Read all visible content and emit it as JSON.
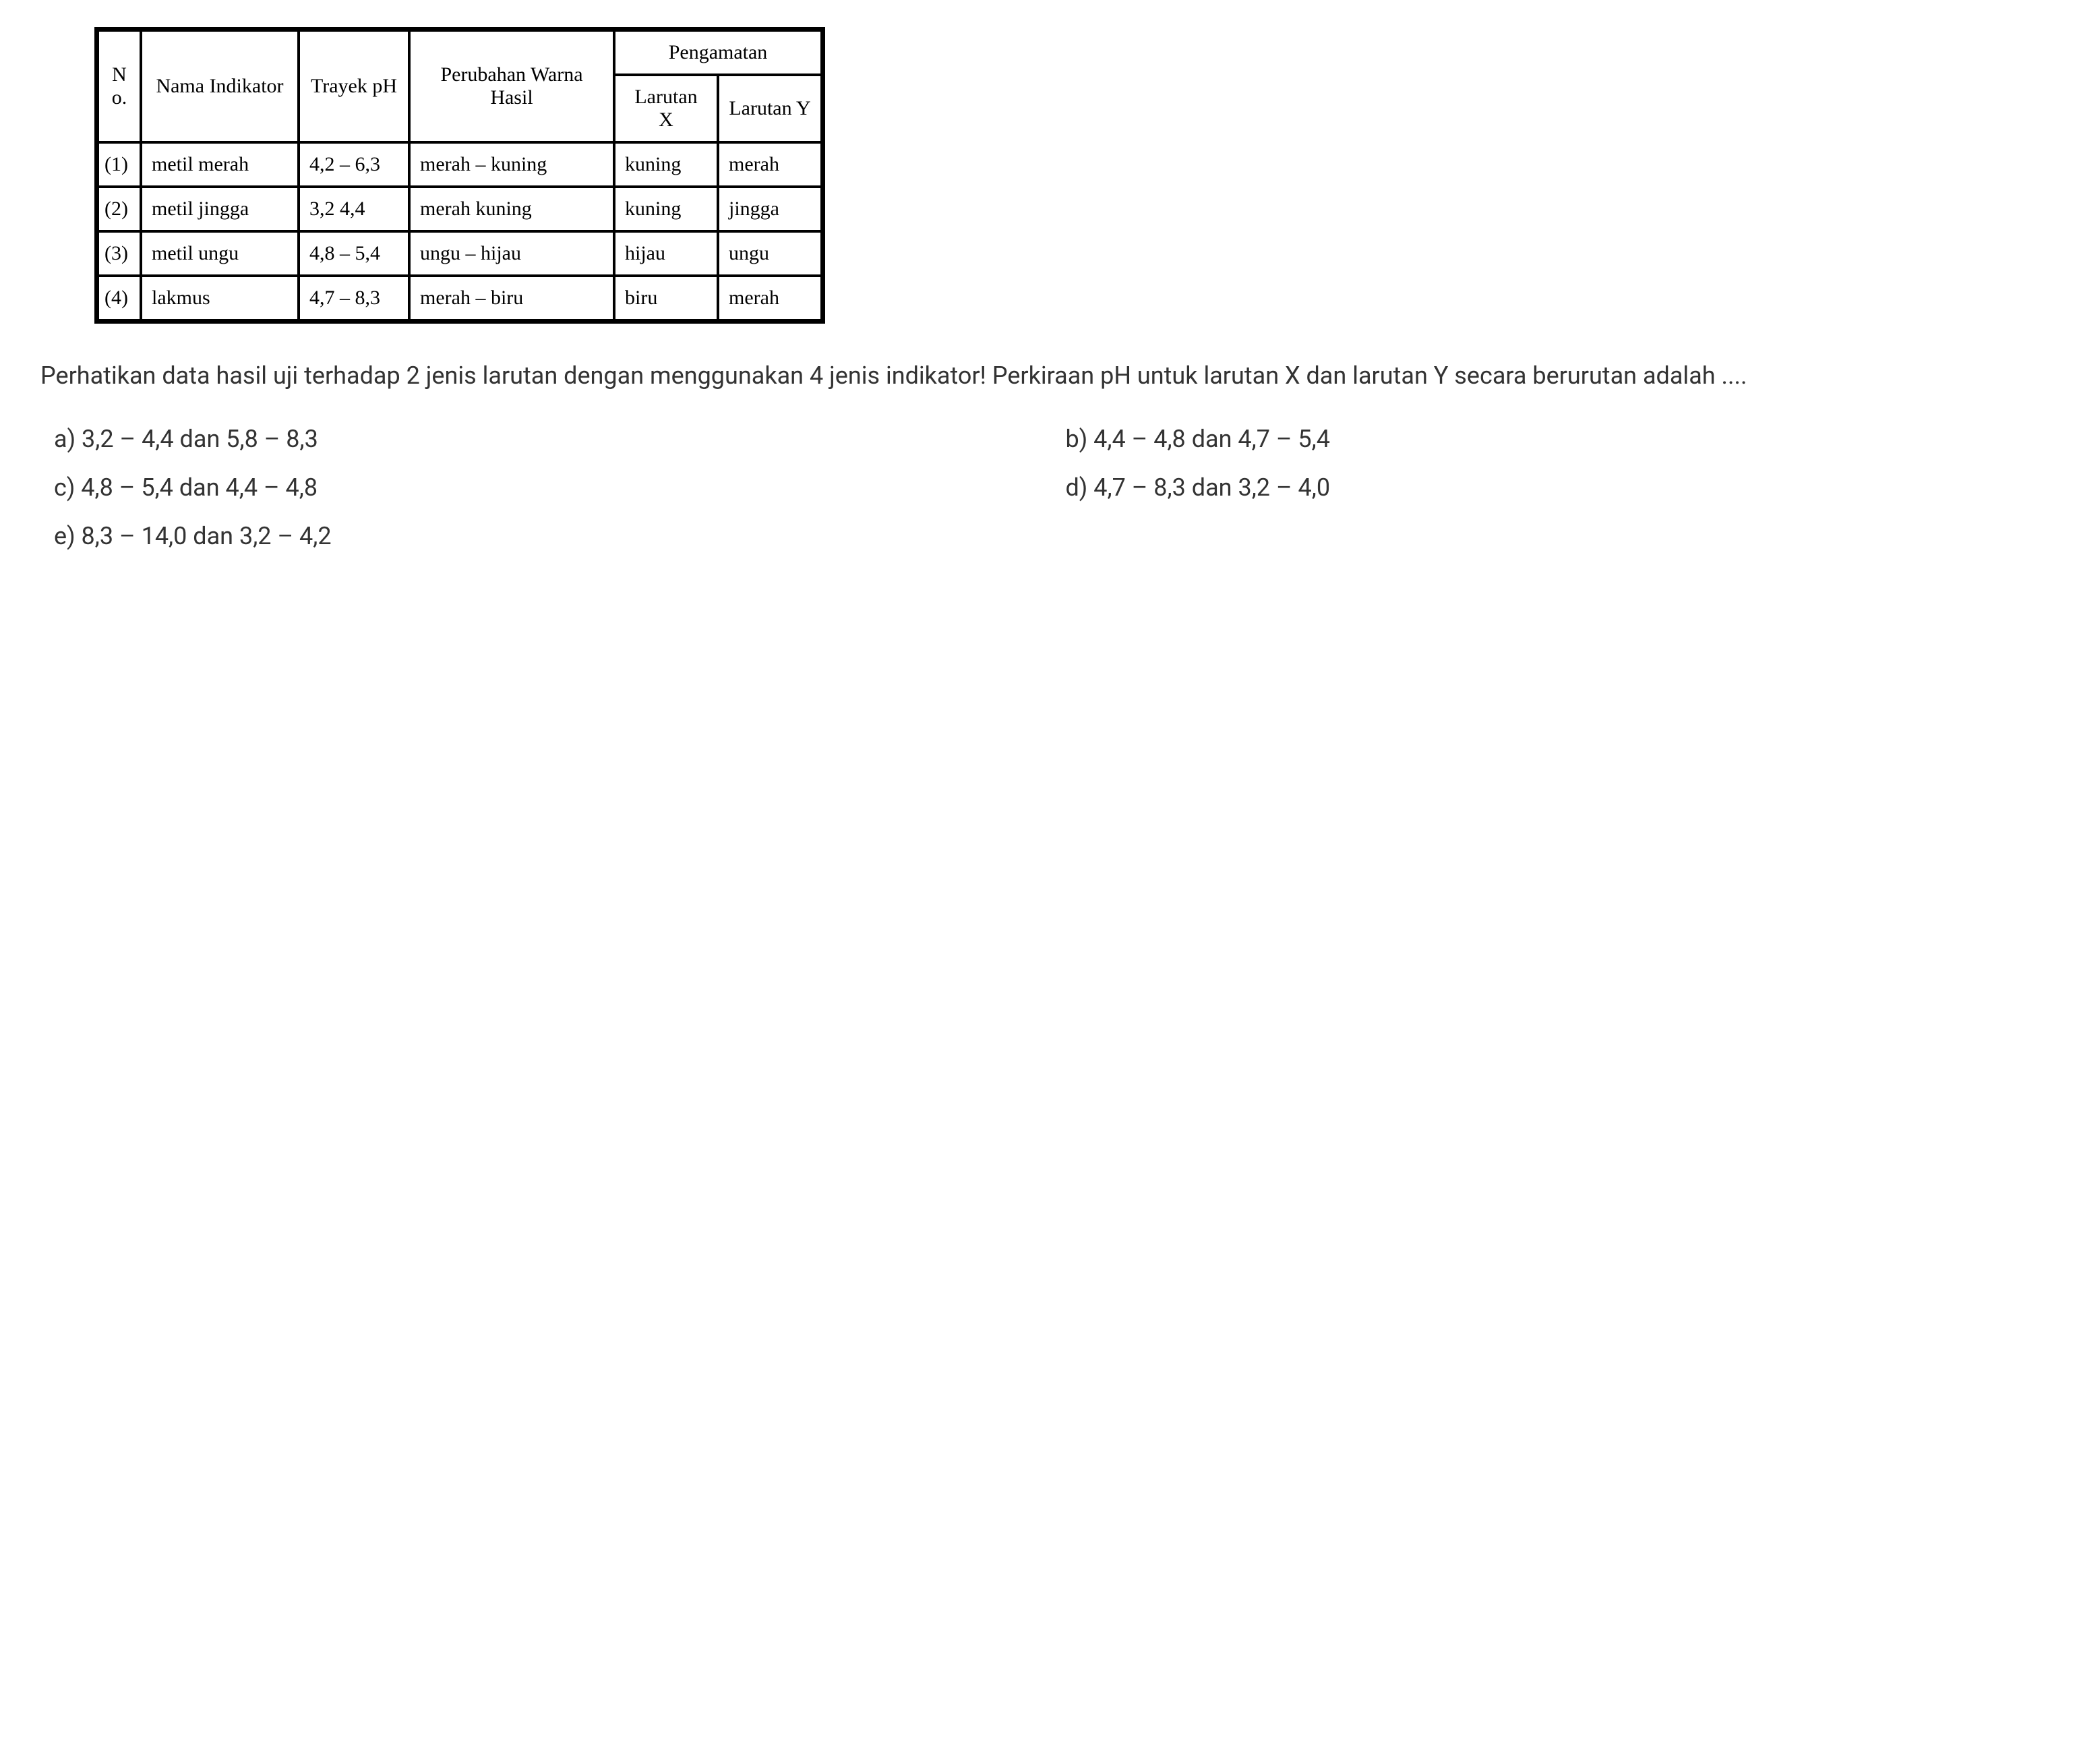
{
  "table": {
    "headers": {
      "no": "N o.",
      "nama": "Nama Indikator",
      "trayek": "Trayek pH",
      "perubahan": "Perubahan Warna Hasil",
      "pengamatan": "Pengamatan",
      "larutanX": "Larutan X",
      "larutanY": "Larutan Y"
    },
    "rows": [
      {
        "no": "(1)",
        "nama": "metil merah",
        "trayek": "4,2 – 6,3",
        "perubahan": "merah – kuning",
        "x": "kuning",
        "y": "merah"
      },
      {
        "no": "(2)",
        "nama": "metil jingga",
        "trayek": "3,2   4,4",
        "perubahan": "merah   kuning",
        "x": "kuning",
        "y": "jingga"
      },
      {
        "no": "(3)",
        "nama": "metil ungu",
        "trayek": "4,8 – 5,4",
        "perubahan": "ungu – hijau",
        "x": "hijau",
        "y": "ungu"
      },
      {
        "no": "(4)",
        "nama": "lakmus",
        "trayek": "4,7 – 8,3",
        "perubahan": "merah – biru",
        "x": "biru",
        "y": "merah"
      }
    ],
    "border_color": "#000000",
    "background_color": "#ffffff",
    "header_fontsize": 30,
    "cell_fontsize": 30
  },
  "question": {
    "text": "Perhatikan data hasil uji terhadap 2 jenis larutan dengan menggunakan 4 jenis indikator! Perkiraan pH untuk larutan X dan larutan Y secara berurutan adalah ....",
    "fontsize": 36,
    "color": "#333333"
  },
  "options": {
    "a": "a)  3,2 – 4,4 dan 5,8 – 8,3",
    "b": "b)  4,4 – 4,8 dan 4,7 – 5,4",
    "c": "c)  4,8 – 5,4 dan 4,4 – 4,8",
    "d": "d)  4,7 – 8,3 dan 3,2 – 4,0",
    "e": "e)  8,3 – 14,0 dan 3,2 – 4,2",
    "fontsize": 36,
    "color": "#333333"
  }
}
